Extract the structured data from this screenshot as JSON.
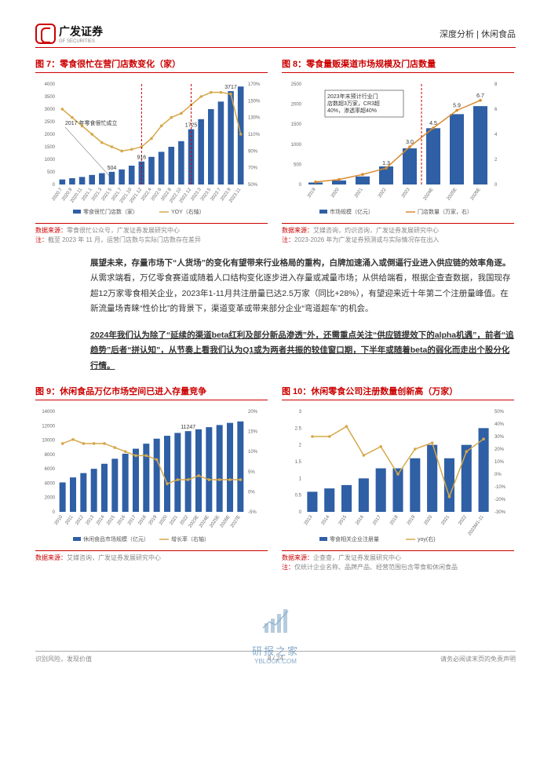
{
  "header": {
    "company_cn": "广发证券",
    "company_en": "GF SECURITIES",
    "right": "深度分析 | 休闲食品"
  },
  "chart7": {
    "title": "图 7：零食很忙在营门店数变化（家）",
    "type": "combo-bar-line",
    "x_labels": [
      "2020.7",
      "2020.9",
      "2020.11",
      "2021.1",
      "2021.3",
      "2021.5",
      "2021.7",
      "2021.10",
      "2021.12",
      "2022.4",
      "2022.6",
      "2022.8",
      "2022.10",
      "2022.12",
      "2023.3",
      "2023.5",
      "2023.7",
      "2023.9",
      "2023.11"
    ],
    "bars": [
      200,
      250,
      300,
      380,
      450,
      504,
      600,
      750,
      916,
      1100,
      1300,
      1500,
      1725,
      2200,
      2600,
      3000,
      3300,
      3717,
      3900
    ],
    "line_yoy": [
      140,
      130,
      120,
      110,
      100,
      95,
      90,
      92,
      95,
      105,
      120,
      130,
      135,
      145,
      155,
      160,
      160,
      158,
      110
    ],
    "left_axis": {
      "min": 0,
      "max": 4000,
      "step": 500
    },
    "right_axis": {
      "min": 50,
      "max": 170,
      "step": 20,
      "suffix": "%"
    },
    "annotations": {
      "founded": "2017 年零食很忙成立",
      "label_504": "504",
      "label_916": "916",
      "label_1725": "1725",
      "label_3717": "3717"
    },
    "legend": {
      "bars": "零食很忙门店数（家）",
      "line": "YOY（右轴）"
    },
    "colors": {
      "bar": "#2f5fa5",
      "line": "#d6a84a",
      "dash": "#c00"
    },
    "source": "数据来源：零食很忙公众号，广发证券发展研究中心",
    "note": "注：截至 2023 年 11 月，运营门店数与实际门店数存在差异"
  },
  "chart8": {
    "title": "图 8：零食量贩渠道市场规模及门店数量",
    "type": "combo-bar-line",
    "x_labels": [
      "2019",
      "2020",
      "2021",
      "2022",
      "2023",
      "2024E",
      "2025E",
      "2026E"
    ],
    "market_size": [
      50,
      100,
      200,
      450,
      900,
      1400,
      1750,
      1950
    ],
    "stores": [
      0.2,
      0.4,
      0.8,
      1.3,
      3.0,
      4.5,
      5.9,
      6.7
    ],
    "labels_stores": [
      "",
      "",
      "",
      "1.3",
      "3.0",
      "4.5",
      "5.9",
      "6.7"
    ],
    "left_axis": {
      "min": 0,
      "max": 2500,
      "step": 500
    },
    "right_axis": {
      "min": 0,
      "max": 8,
      "step": 2
    },
    "annotation_box": "2023年末预计行业门店数超3万家，CR3超40%，渗透率超40%",
    "legend": {
      "bars": "市场规模（亿元）",
      "line": "门店数量（万家，右）"
    },
    "colors": {
      "bar": "#2f5fa5",
      "line": "#d98b2e",
      "dash": "#c00",
      "box_border": "#333"
    },
    "source": "数据来源：艾媒咨询，灼识咨询，广发证券发展研究中心",
    "note": "注：2023-2026 年为广发证券预测或与实际情况存在出入"
  },
  "paragraph1": {
    "lead": "展望未来，存量市场下“人货场”的变化有望带来行业格局的重构，白牌加速涌入或倒逼行业进入供应链的效率角逐。",
    "rest": "从需求端看，万亿零食赛道或随着人口结构变化逐步进入存量或减量市场；从供给端看，根据企查查数据，我国现存超12万家零食相关企业，2023年1-11月共注册量已达2.5万家（同比+28%），有望迎来近十年第二个注册量峰值。在新流量场青睐“性价比”的背景下，渠道变革或带来部分企业“弯道超车”的机会。"
  },
  "paragraph2": {
    "lead": "2024年我们认为除了“延续的渠道beta红利及部分新品渗透”外，还需重点关注“供应链提效下的alpha机遇”，前者“追趋势”后者“拼认知”，从节奏上看我们认为Q1或为两者共振的较佳窗口期，下半年或随着beta的弱化而走出个股分化行情。"
  },
  "chart9": {
    "title": "图 9：休闲食品万亿市场空间已进入存量竞争",
    "type": "combo-bar-line",
    "x_labels": [
      "2010",
      "2011",
      "2012",
      "2013",
      "2014",
      "2015",
      "2016",
      "2017",
      "2018",
      "2019",
      "2020",
      "2021",
      "2022",
      "2023E",
      "2024E",
      "2025E",
      "2026E",
      "2027E"
    ],
    "bars": [
      4100,
      4800,
      5400,
      6000,
      6700,
      7400,
      8100,
      8800,
      9500,
      10200,
      10600,
      11000,
      11247,
      11500,
      11800,
      12100,
      12400,
      12600
    ],
    "growth": [
      12,
      13,
      12,
      12,
      12,
      11,
      10,
      9,
      9,
      8,
      2,
      3,
      3,
      4,
      3,
      3,
      3,
      3
    ],
    "left_axis": {
      "min": 0,
      "max": 14000,
      "step": 2000
    },
    "right_axis": {
      "min": -5,
      "max": 20,
      "step": 5,
      "suffix": "%"
    },
    "label_11247": "11247",
    "legend": {
      "bars": "休闲食品市场规模（亿元）",
      "line": "增长率（右轴）"
    },
    "colors": {
      "bar": "#2f5fa5",
      "line": "#d6a84a"
    },
    "source": "数据来源：艾媒咨询，广发证券发展研究中心",
    "note": ""
  },
  "chart10": {
    "title": "图 10：休闲零食公司注册数量创新高（万家）",
    "type": "combo-bar-line",
    "x_labels": [
      "2013",
      "2014",
      "2015",
      "2016",
      "2017",
      "2018",
      "2019",
      "2020",
      "2021",
      "2022",
      "2023M1-11"
    ],
    "bars": [
      0.6,
      0.7,
      0.8,
      1.0,
      1.3,
      1.3,
      1.6,
      2.0,
      1.6,
      2.0,
      2.5
    ],
    "yoy": [
      30,
      30,
      38,
      15,
      22,
      0,
      20,
      25,
      -18,
      18,
      28
    ],
    "left_axis": {
      "min": 0,
      "max": 3.0,
      "step": 0.5
    },
    "right_axis": {
      "min": -30,
      "max": 50,
      "step": 10,
      "suffix": "%"
    },
    "legend": {
      "bars": "零食相关企业注册量",
      "line": "yoy(右)"
    },
    "colors": {
      "bar": "#2f5fa5",
      "line": "#d6a84a"
    },
    "source": "数据来源：企查查，广发证券发展研究中心",
    "note": "注：仅统计企业名称、品牌产品、经营范围包含零食和休闲食品"
  },
  "footer": {
    "left": "识别风险，发现价值",
    "right": "请务必阅读末页的免责声明",
    "page": "8 / 24"
  },
  "watermark": {
    "text": "研报之家",
    "sub": "YBLOOK.COM"
  }
}
